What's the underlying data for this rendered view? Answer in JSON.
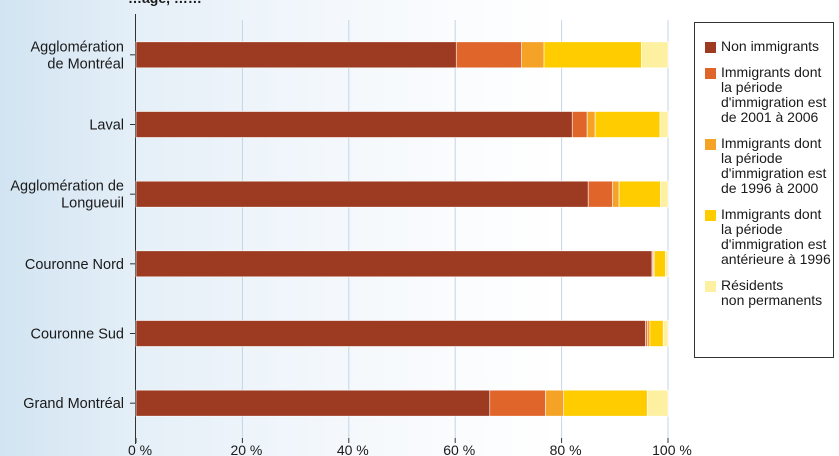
{
  "chart_data": {
    "type": "bar",
    "orientation": "horizontal",
    "stacked": true,
    "title": "…age, ……",
    "categories": [
      "Agglomération\nde Montréal",
      "Laval",
      "Agglomération de\nLongueuil",
      "Couronne Nord",
      "Couronne Sud",
      "Grand Montréal"
    ],
    "series": [
      {
        "name": "Non immigrants",
        "color": "#9c3a22",
        "values": [
          60.2,
          82.0,
          85.0,
          97.0,
          95.8,
          66.5
        ]
      },
      {
        "name": "Immigrants dont\nla période\nd'immigration est\nde 2001 à 2006",
        "color": "#e0652a",
        "values": [
          12.3,
          2.8,
          4.6,
          0.2,
          0.3,
          10.5
        ]
      },
      {
        "name": "Immigrants dont\nla période\nd'immigration est\nde 1996 à 2000",
        "color": "#f5a326",
        "values": [
          4.2,
          1.5,
          1.2,
          0.2,
          0.5,
          3.4
        ]
      },
      {
        "name": "Immigrants dont\nla période\nd'immigration est\nantérieure à 1996",
        "color": "#ffcc00",
        "values": [
          18.3,
          12.2,
          7.8,
          2.1,
          2.5,
          15.7
        ]
      },
      {
        "name": "Résidents\nnon permanents",
        "color": "#fdf0a0",
        "values": [
          5.0,
          1.5,
          1.4,
          0.5,
          0.9,
          3.9
        ]
      }
    ],
    "xlim": [
      0,
      100
    ],
    "x_ticks": [
      "0 %",
      "20 %",
      "40 %",
      "60 %",
      "80 %",
      "100 %"
    ],
    "grid": true,
    "legend_position": "right"
  }
}
